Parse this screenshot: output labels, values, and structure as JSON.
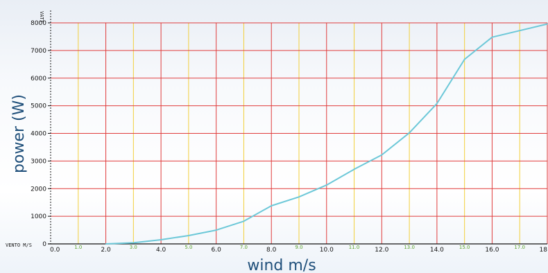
{
  "chart_data": {
    "type": "line",
    "title": "",
    "xlabel": "wind m/s",
    "ylabel": "power (W)",
    "x_axis_tag": "VENTO M/S",
    "y_axis_tag": "VATT",
    "xlim": [
      0,
      18
    ],
    "ylim": [
      0,
      8000
    ],
    "yticks": [
      "0",
      "1000",
      "2000",
      "3000",
      "4000",
      "5000",
      "6000",
      "7000",
      "8000"
    ],
    "xticks_major": [
      "0.0",
      "2.0",
      "4.0",
      "6.0",
      "8.0",
      "10.0",
      "12.0",
      "14.0",
      "16.0",
      "18"
    ],
    "xticks_minor": [
      "1.0",
      "3.0",
      "5.0",
      "7.0",
      "9.0",
      "11.0",
      "13.0",
      "15.0",
      "17.0"
    ],
    "grid": true,
    "colors": {
      "major_grid": "#e03c3c",
      "minor_grid": "#f2cf3a",
      "line": "#6cc8d8",
      "axis_label": "#1f4f7a",
      "minor_tick_label": "#5aa02c"
    },
    "series": [
      {
        "x": [
          2,
          3,
          4,
          5,
          6,
          7,
          8,
          9,
          10,
          11,
          12,
          13,
          14,
          15,
          16,
          17,
          18
        ],
        "y": [
          0,
          40,
          150,
          300,
          500,
          820,
          1380,
          1700,
          2130,
          2700,
          3220,
          4020,
          5080,
          6680,
          7480,
          7720,
          7960
        ]
      }
    ]
  }
}
